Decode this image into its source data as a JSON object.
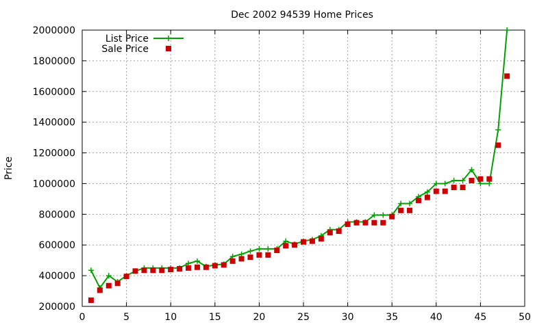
{
  "chart_data": {
    "type": "line",
    "title": "Dec 2002 94539 Home Prices",
    "xlabel": "",
    "ylabel": "Price",
    "xlim": [
      0,
      50
    ],
    "ylim": [
      200000,
      2000000
    ],
    "x_ticks": [
      0,
      5,
      10,
      15,
      20,
      25,
      30,
      35,
      40,
      45,
      50
    ],
    "y_ticks": [
      200000,
      400000,
      600000,
      800000,
      1000000,
      1200000,
      1400000,
      1600000,
      1800000,
      2000000
    ],
    "grid": true,
    "legend_position": "top-left",
    "series": [
      {
        "name": "List Price",
        "style": "line+cross",
        "color": "#00a000",
        "x": [
          1,
          2,
          3,
          4,
          5,
          6,
          7,
          8,
          9,
          10,
          11,
          12,
          13,
          14,
          15,
          16,
          17,
          18,
          19,
          20,
          21,
          22,
          23,
          24,
          25,
          26,
          27,
          28,
          29,
          30,
          31,
          32,
          33,
          34,
          35,
          36,
          37,
          38,
          39,
          40,
          41,
          42,
          43,
          44,
          45,
          46,
          47,
          48
        ],
        "y": [
          435000,
          320000,
          400000,
          360000,
          400000,
          430000,
          450000,
          450000,
          450000,
          450000,
          450000,
          480000,
          495000,
          460000,
          470000,
          475000,
          525000,
          540000,
          560000,
          575000,
          575000,
          575000,
          625000,
          605000,
          625000,
          635000,
          660000,
          700000,
          700000,
          750000,
          750000,
          750000,
          795000,
          795000,
          795000,
          870000,
          870000,
          915000,
          945000,
          1000000,
          1000000,
          1020000,
          1020000,
          1090000,
          1000000,
          1000000,
          1350000,
          2000000
        ]
      },
      {
        "name": "Sale Price",
        "style": "points",
        "color": "#cc0000",
        "x": [
          1,
          2,
          3,
          4,
          5,
          6,
          7,
          8,
          9,
          10,
          11,
          12,
          13,
          14,
          15,
          16,
          17,
          18,
          19,
          20,
          21,
          22,
          23,
          24,
          25,
          26,
          27,
          28,
          29,
          30,
          31,
          32,
          33,
          34,
          35,
          36,
          37,
          38,
          39,
          40,
          41,
          42,
          43,
          44,
          45,
          46,
          47,
          48
        ],
        "y": [
          240000,
          305000,
          335000,
          350000,
          395000,
          430000,
          435000,
          435000,
          435000,
          440000,
          445000,
          450000,
          455000,
          455000,
          465000,
          470000,
          495000,
          510000,
          520000,
          535000,
          535000,
          565000,
          595000,
          600000,
          620000,
          625000,
          640000,
          680000,
          690000,
          735000,
          745000,
          745000,
          745000,
          745000,
          785000,
          825000,
          825000,
          890000,
          910000,
          950000,
          950000,
          975000,
          975000,
          1020000,
          1030000,
          1030000,
          1250000,
          1700000
        ]
      }
    ]
  }
}
